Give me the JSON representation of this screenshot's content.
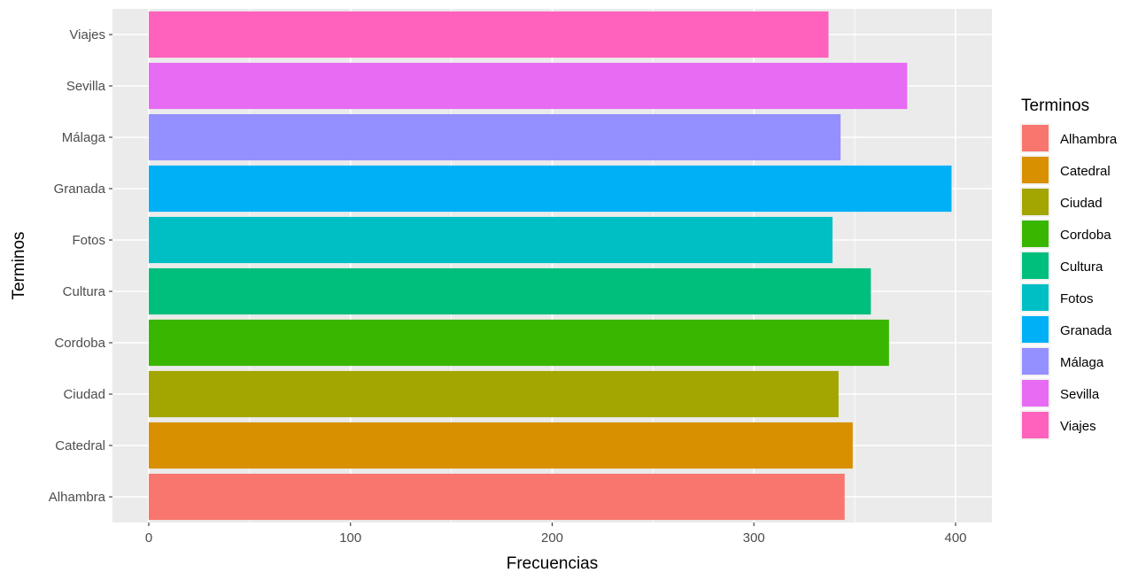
{
  "chart_data": {
    "type": "bar",
    "orientation": "horizontal",
    "xlabel": "Frecuencias",
    "ylabel": "Terminos",
    "xlim": [
      -18,
      418
    ],
    "x_ticks": [
      0,
      100,
      200,
      300,
      400
    ],
    "grid": true,
    "categories": [
      "Alhambra",
      "Catedral",
      "Ciudad",
      "Cordoba",
      "Cultura",
      "Fotos",
      "Granada",
      "Málaga",
      "Sevilla",
      "Viajes"
    ],
    "values": [
      345,
      349,
      342,
      367,
      358,
      339,
      398,
      343,
      376,
      337
    ],
    "colors": [
      "#F8766D",
      "#D89000",
      "#A3A500",
      "#39B600",
      "#00BF7D",
      "#00BFC4",
      "#00B0F6",
      "#9590FF",
      "#E76BF3",
      "#FF62BC"
    ],
    "legend": {
      "title": "Terminos",
      "position": "right",
      "entries": [
        "Alhambra",
        "Catedral",
        "Ciudad",
        "Cordoba",
        "Cultura",
        "Fotos",
        "Granada",
        "Málaga",
        "Sevilla",
        "Viajes"
      ]
    }
  }
}
